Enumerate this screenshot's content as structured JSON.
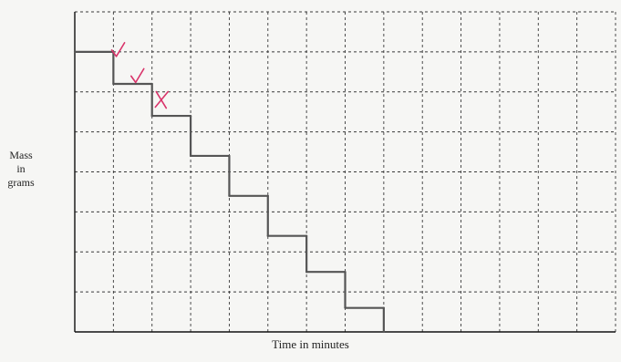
{
  "chart_data": {
    "type": "line",
    "title": "",
    "xlabel": "Time in minutes",
    "ylabel_lines": [
      "Mass",
      "in",
      "grams"
    ],
    "grid": true,
    "grid_cols": 14,
    "grid_rows": 8,
    "series": [
      {
        "style": "step",
        "color": "#555555",
        "points": [
          {
            "x": 0,
            "y": 7.0
          },
          {
            "x": 1,
            "y": 7.0
          },
          {
            "x": 1,
            "y": 6.2
          },
          {
            "x": 2,
            "y": 6.2
          },
          {
            "x": 2,
            "y": 5.4
          },
          {
            "x": 3,
            "y": 5.4
          },
          {
            "x": 3,
            "y": 4.4
          },
          {
            "x": 4,
            "y": 4.4
          },
          {
            "x": 4,
            "y": 3.4
          },
          {
            "x": 5,
            "y": 3.4
          },
          {
            "x": 5,
            "y": 2.4
          },
          {
            "x": 6,
            "y": 2.4
          },
          {
            "x": 6,
            "y": 1.5
          },
          {
            "x": 7,
            "y": 1.5
          },
          {
            "x": 7,
            "y": 0.6
          },
          {
            "x": 8,
            "y": 0.6
          },
          {
            "x": 8,
            "y": 0.0
          }
        ]
      }
    ],
    "annotations": [
      {
        "mark": "check",
        "color": "#d9336a",
        "x": 1.1,
        "y": 7.0
      },
      {
        "mark": "check",
        "color": "#d9336a",
        "x": 1.6,
        "y": 6.35
      },
      {
        "mark": "cross",
        "color": "#d9336a",
        "x": 2.25,
        "y": 5.8
      }
    ],
    "xlim": [
      0,
      14
    ],
    "ylim": [
      0,
      8
    ]
  }
}
